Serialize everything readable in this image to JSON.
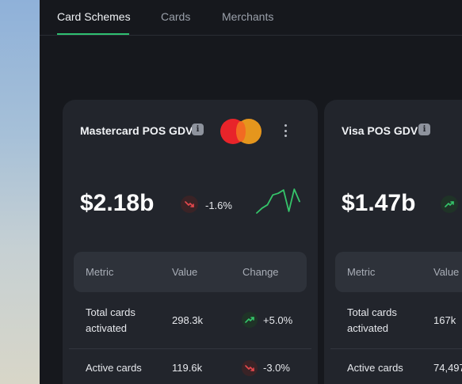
{
  "tabs": [
    {
      "label": "Card Schemes",
      "active": true
    },
    {
      "label": "Cards",
      "active": false
    },
    {
      "label": "Merchants",
      "active": false
    }
  ],
  "cards": [
    {
      "title": "Mastercard POS GDV",
      "info_icon": "info-icon",
      "logo": "mastercard-logo",
      "value": "$2.18b",
      "change": "-1.6%",
      "change_direction": "down",
      "sparkline": [
        4,
        10,
        14,
        26,
        28,
        32,
        6,
        33,
        18
      ],
      "table": {
        "headers": [
          "Metric",
          "Value",
          "Change"
        ],
        "rows": [
          {
            "metric": "Total cards activated",
            "value": "298.3k",
            "change": "+5.0%",
            "direction": "up"
          },
          {
            "metric": "Active cards",
            "value": "119.6k",
            "change": "-3.0%",
            "direction": "down"
          }
        ]
      }
    },
    {
      "title": "Visa POS GDV",
      "info_icon": "info-icon",
      "value": "$1.47b",
      "change_direction": "up",
      "table": {
        "headers": [
          "Metric",
          "Value"
        ],
        "rows": [
          {
            "metric": "Total cards activated",
            "value": "167k"
          },
          {
            "metric": "Active cards",
            "value": "74,497"
          }
        ]
      }
    }
  ],
  "colors": {
    "accent": "#2fbf71",
    "down": "#e5484d",
    "up": "#35c46a",
    "card_bg": "#22252c",
    "page_bg": "#16181d"
  }
}
